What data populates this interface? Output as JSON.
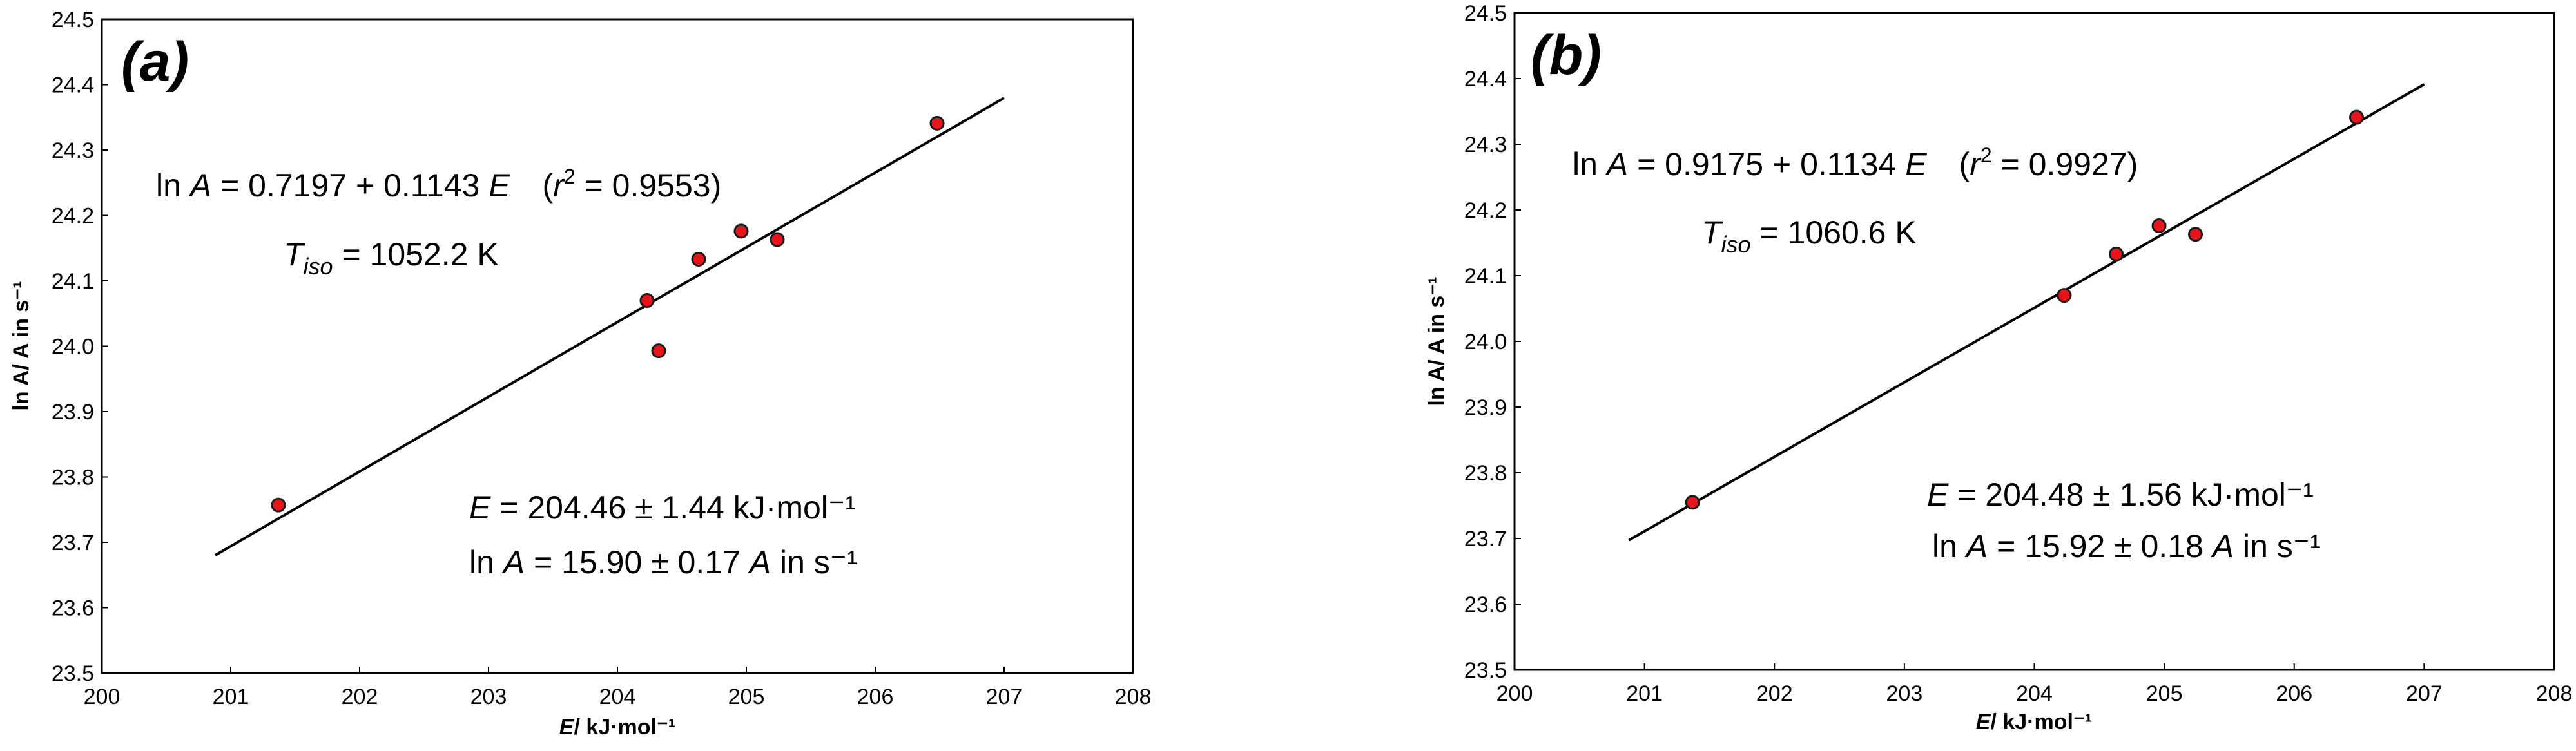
{
  "chart_data": [
    {
      "type": "scatter",
      "panel_label": "(a)",
      "xlabel_italic": "E",
      "xlabel_rest": "/ kJ·mol⁻¹",
      "ylabel": "ln A/ A in s⁻¹",
      "xlim": [
        200,
        208
      ],
      "ylim": [
        23.5,
        24.5
      ],
      "x_ticks": [
        "200",
        "201",
        "202",
        "203",
        "204",
        "205",
        "206",
        "207",
        "208"
      ],
      "y_ticks": [
        "23.5",
        "23.6",
        "23.7",
        "23.8",
        "23.9",
        "24.0",
        "24.1",
        "24.2",
        "24.3",
        "24.4",
        "24.5"
      ],
      "points": [
        {
          "x": 201.37,
          "y": 23.757
        },
        {
          "x": 204.23,
          "y": 24.07
        },
        {
          "x": 204.32,
          "y": 23.993
        },
        {
          "x": 204.63,
          "y": 24.133
        },
        {
          "x": 204.96,
          "y": 24.176
        },
        {
          "x": 205.24,
          "y": 24.163
        },
        {
          "x": 206.48,
          "y": 24.341
        }
      ],
      "fit": {
        "intercept": 0.7197,
        "slope": 0.1143,
        "x_range": [
          200.88,
          207.0
        ]
      },
      "annotations": {
        "eq": {
          "prefix": "ln ",
          "A": "A",
          "mid": " = 0.7197 + 0.1143 ",
          "E": "E",
          "r_open": "(",
          "r": "r",
          "r_sup": "2",
          "r_val": " = 0.9553)"
        },
        "tiso": {
          "T": "T",
          "sub": "iso",
          "val": " = 1052.2 K"
        },
        "e_line": {
          "E": "E",
          "val": " = 204.46 ± 1.44 kJ·mol⁻¹"
        },
        "lna_line": {
          "prefix": "ln ",
          "A": "A",
          "val": " = 15.90 ± 0.17 ",
          "A2": "A",
          "unit": " in s⁻¹"
        }
      }
    },
    {
      "type": "scatter",
      "panel_label": "(b)",
      "xlabel_italic": "E",
      "xlabel_rest": "/ kJ·mol⁻¹",
      "ylabel": "ln A/ A in s⁻¹",
      "xlim": [
        200,
        208
      ],
      "ylim": [
        23.5,
        24.5
      ],
      "x_ticks": [
        "200",
        "201",
        "202",
        "203",
        "204",
        "205",
        "206",
        "207",
        "208"
      ],
      "y_ticks": [
        "23.5",
        "23.6",
        "23.7",
        "23.8",
        "23.9",
        "24.0",
        "24.1",
        "24.2",
        "24.3",
        "24.4",
        "24.5"
      ],
      "points": [
        {
          "x": 201.37,
          "y": 23.755
        },
        {
          "x": 204.23,
          "y": 24.07
        },
        {
          "x": 204.63,
          "y": 24.133
        },
        {
          "x": 204.96,
          "y": 24.176
        },
        {
          "x": 205.24,
          "y": 24.163
        },
        {
          "x": 206.48,
          "y": 24.341
        }
      ],
      "fit": {
        "intercept": 0.9175,
        "slope": 0.1134,
        "x_range": [
          200.88,
          207.0
        ]
      },
      "annotations": {
        "eq": {
          "prefix": "ln ",
          "A": "A",
          "mid": " = 0.9175 + 0.1134 ",
          "E": "E",
          "r_open": "(",
          "r": "r",
          "r_sup": "2",
          "r_val": " = 0.9927)"
        },
        "tiso": {
          "T": "T",
          "sub": "iso",
          "val": " = 1060.6 K"
        },
        "e_line": {
          "E": "E",
          "val": " = 204.48 ± 1.56 kJ·mol⁻¹"
        },
        "lna_line": {
          "prefix": "ln ",
          "A": "A",
          "val": " = 15.92 ± 0.18 ",
          "A2": "A",
          "unit": " in s⁻¹"
        }
      }
    }
  ],
  "style": {
    "point_fill": "#e8141c",
    "point_stroke": "#1a1a1a",
    "line_color": "#000000",
    "frame_color": "#000000"
  }
}
